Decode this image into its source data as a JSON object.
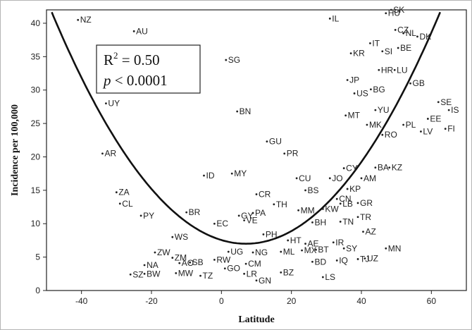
{
  "chart_data": {
    "type": "scatter",
    "title": "",
    "xlabel": "Latitude",
    "ylabel": "Incidence per 100,000",
    "xlim": [
      -50,
      70
    ],
    "ylim": [
      0,
      42
    ],
    "x_ticks": [
      "-40",
      "-20",
      "0",
      "20",
      "40",
      "60"
    ],
    "y_ticks": [
      "0",
      "5",
      "10",
      "15",
      "20",
      "25",
      "30",
      "35",
      "40"
    ],
    "grid": false,
    "annotation": {
      "r2": "R² = 0.50",
      "r2_base": "R",
      "r2_sup": "2",
      "r2_rest": " = 0.50",
      "p_italic": "p",
      "p_rest": " < 0.0001"
    },
    "fit": {
      "type": "quadratic",
      "vertex_x": 7,
      "vertex_y": 7.0,
      "a": 0.01125
    },
    "points": [
      {
        "label": "NZ",
        "x": -41,
        "y": 40.5
      },
      {
        "label": "AU",
        "x": -25,
        "y": 38.8
      },
      {
        "label": "UY",
        "x": -33,
        "y": 28
      },
      {
        "label": "AR",
        "x": -34,
        "y": 20.5
      },
      {
        "label": "ZA",
        "x": -30,
        "y": 14.7
      },
      {
        "label": "CL",
        "x": -29,
        "y": 13
      },
      {
        "label": "PY",
        "x": -23,
        "y": 11.2
      },
      {
        "label": "WS",
        "x": -14,
        "y": 8
      },
      {
        "label": "ZW",
        "x": -19,
        "y": 5.7
      },
      {
        "label": "ZM",
        "x": -14,
        "y": 4.9
      },
      {
        "label": "NA",
        "x": -22,
        "y": 3.8
      },
      {
        "label": "AO",
        "x": -12,
        "y": 4.1
      },
      {
        "label": "SB",
        "x": -9,
        "y": 4.2
      },
      {
        "label": "SZ",
        "x": -26,
        "y": 2.4
      },
      {
        "label": "BW",
        "x": -22,
        "y": 2.5
      },
      {
        "label": "MW",
        "x": -13,
        "y": 2.6
      },
      {
        "label": "TZ",
        "x": -6,
        "y": 2.2
      },
      {
        "label": "BR",
        "x": -10,
        "y": 11.7
      },
      {
        "label": "ID",
        "x": -5,
        "y": 17.2
      },
      {
        "label": "EC",
        "x": -2,
        "y": 10
      },
      {
        "label": "RW",
        "x": -2,
        "y": 4.6
      },
      {
        "label": "GO",
        "x": 1,
        "y": 3.3
      },
      {
        "label": "UG",
        "x": 2,
        "y": 5.8
      },
      {
        "label": "SG",
        "x": 1.3,
        "y": 34.5
      },
      {
        "label": "BN",
        "x": 4.5,
        "y": 26.8
      },
      {
        "label": "MY",
        "x": 3,
        "y": 17.5
      },
      {
        "label": "GY",
        "x": 5,
        "y": 11.2
      },
      {
        "label": "PA",
        "x": 9,
        "y": 11.6
      },
      {
        "label": "VE",
        "x": 6.5,
        "y": 10.5
      },
      {
        "label": "LR",
        "x": 6.5,
        "y": 2.5
      },
      {
        "label": "CM",
        "x": 7,
        "y": 4
      },
      {
        "label": "GN",
        "x": 10,
        "y": 1.5
      },
      {
        "label": "NG",
        "x": 9,
        "y": 5.7
      },
      {
        "label": "GU",
        "x": 13,
        "y": 22.3
      },
      {
        "label": "CR",
        "x": 10,
        "y": 14.4
      },
      {
        "label": "TH",
        "x": 15,
        "y": 12.9
      },
      {
        "label": "PH",
        "x": 12,
        "y": 8.4
      },
      {
        "label": "BZ",
        "x": 17,
        "y": 2.7
      },
      {
        "label": "ML",
        "x": 17,
        "y": 5.8
      },
      {
        "label": "HT",
        "x": 19,
        "y": 7.5
      },
      {
        "label": "PR",
        "x": 18,
        "y": 20.5
      },
      {
        "label": "CU",
        "x": 21.5,
        "y": 16.8
      },
      {
        "label": "BS",
        "x": 24,
        "y": 15
      },
      {
        "label": "MM",
        "x": 22,
        "y": 12
      },
      {
        "label": "BH",
        "x": 26,
        "y": 10.2
      },
      {
        "label": "AE",
        "x": 24,
        "y": 7
      },
      {
        "label": "MX",
        "x": 23,
        "y": 6
      },
      {
        "label": "BT",
        "x": 27,
        "y": 6.1
      },
      {
        "label": "BD",
        "x": 26,
        "y": 4.3
      },
      {
        "label": "LS",
        "x": 29,
        "y": 2
      },
      {
        "label": "IL",
        "x": 31,
        "y": 40.7
      },
      {
        "label": "JO",
        "x": 31,
        "y": 16.8
      },
      {
        "label": "CY",
        "x": 35,
        "y": 18.3
      },
      {
        "label": "CN",
        "x": 33,
        "y": 13.7
      },
      {
        "label": "KW",
        "x": 29,
        "y": 12.2
      },
      {
        "label": "LB",
        "x": 34,
        "y": 13
      },
      {
        "label": "KP",
        "x": 36,
        "y": 15.2
      },
      {
        "label": "TN",
        "x": 34,
        "y": 10.3
      },
      {
        "label": "IR",
        "x": 32,
        "y": 7.2
      },
      {
        "label": "SY",
        "x": 35,
        "y": 6.3
      },
      {
        "label": "IQ",
        "x": 33,
        "y": 4.5
      },
      {
        "label": "TJ",
        "x": 39,
        "y": 4.7
      },
      {
        "label": "UZ",
        "x": 41,
        "y": 4.8
      },
      {
        "label": "MT",
        "x": 35.5,
        "y": 26.2
      },
      {
        "label": "JP",
        "x": 36,
        "y": 31.5
      },
      {
        "label": "US",
        "x": 38,
        "y": 29.5
      },
      {
        "label": "KR",
        "x": 37,
        "y": 35.5
      },
      {
        "label": "AM",
        "x": 40,
        "y": 16.8
      },
      {
        "label": "GR",
        "x": 39,
        "y": 13.1
      },
      {
        "label": "TR",
        "x": 39,
        "y": 11
      },
      {
        "label": "AZ",
        "x": 40.5,
        "y": 8.8
      },
      {
        "label": "MN",
        "x": 47,
        "y": 6.3
      },
      {
        "label": "HU",
        "x": 47,
        "y": 41.5
      },
      {
        "label": "SK",
        "x": 48.5,
        "y": 42
      },
      {
        "label": "CZ",
        "x": 49.7,
        "y": 39
      },
      {
        "label": "IT",
        "x": 42.5,
        "y": 37
      },
      {
        "label": "SI",
        "x": 46,
        "y": 35.8
      },
      {
        "label": "BE",
        "x": 50.5,
        "y": 36.3
      },
      {
        "label": "HR",
        "x": 45,
        "y": 33
      },
      {
        "label": "LU",
        "x": 49.5,
        "y": 33
      },
      {
        "label": "BG",
        "x": 42.7,
        "y": 30.1
      },
      {
        "label": "YU",
        "x": 44,
        "y": 27
      },
      {
        "label": "MK",
        "x": 41.6,
        "y": 24.8
      },
      {
        "label": "RO",
        "x": 46,
        "y": 23.3
      },
      {
        "label": "BA",
        "x": 44,
        "y": 18.4
      },
      {
        "label": "KZ",
        "x": 48,
        "y": 18.4
      },
      {
        "label": "NL",
        "x": 52,
        "y": 38.5
      },
      {
        "label": "DK",
        "x": 56,
        "y": 38
      },
      {
        "label": "GB",
        "x": 54,
        "y": 31
      },
      {
        "label": "PL",
        "x": 52,
        "y": 24.8
      },
      {
        "label": "LV",
        "x": 57,
        "y": 23.8
      },
      {
        "label": "EE",
        "x": 59,
        "y": 25.7
      },
      {
        "label": "SE",
        "x": 62,
        "y": 28.2
      },
      {
        "label": "IS",
        "x": 65,
        "y": 27
      },
      {
        "label": "FI",
        "x": 64,
        "y": 24.2
      }
    ]
  }
}
